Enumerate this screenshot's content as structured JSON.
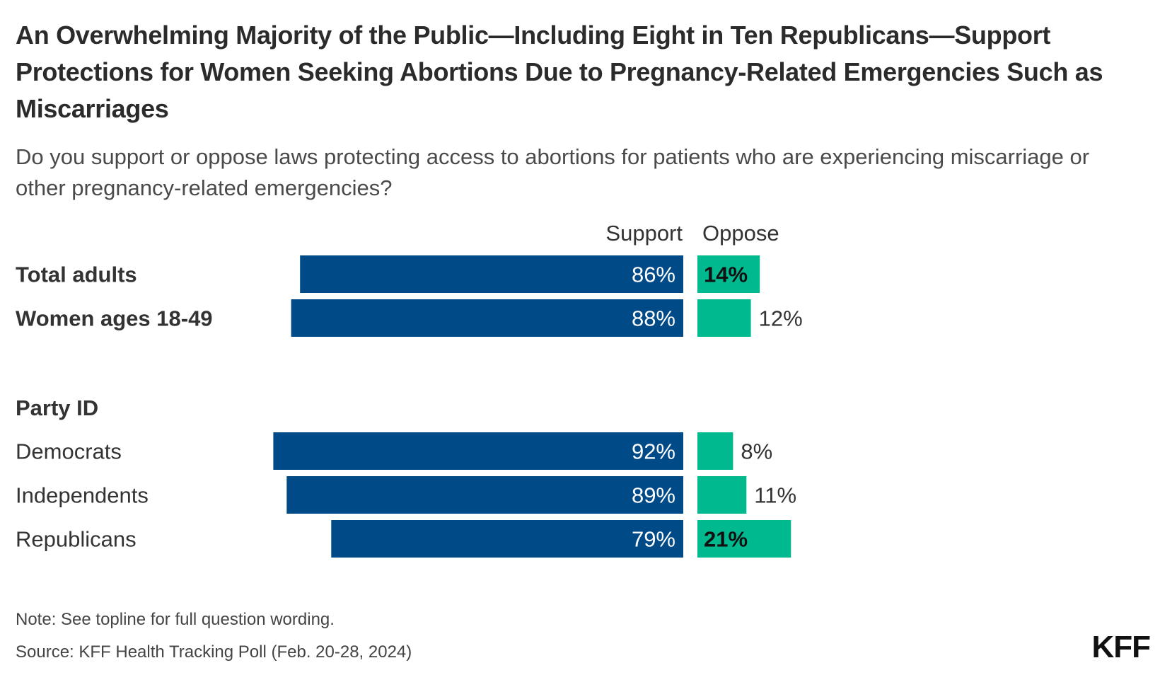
{
  "title": "An Overwhelming Majority of the Public—Including Eight in Ten Republicans—Support Protections for Women Seeking Abortions Due to Pregnancy-Related Emergencies Such as Miscarriages",
  "subtitle": "Do you support or oppose laws protecting access to abortions for patients who are experiencing miscarriage or other pregnancy-related emergencies?",
  "colors": {
    "support": "#004a87",
    "oppose": "#00b98e"
  },
  "chart_data": {
    "type": "bar",
    "orientation": "horizontal-diverging",
    "series": [
      {
        "name": "Support",
        "values": [
          86,
          88,
          92,
          89,
          79
        ]
      },
      {
        "name": "Oppose",
        "values": [
          14,
          12,
          8,
          11,
          21
        ]
      }
    ],
    "categories": [
      "Total adults",
      "Women ages 18-49",
      "Democrats",
      "Independents",
      "Republicans"
    ],
    "group_label": "Party ID",
    "data_labels": {
      "support": [
        "86%",
        "88%",
        "92%",
        "89%",
        "79%"
      ],
      "oppose": [
        "14%",
        "12%",
        "8%",
        "11%",
        "21%"
      ]
    },
    "unit": "%"
  },
  "note": "Note: See topline for full question wording.",
  "source": "Source: KFF Health Tracking Poll (Feb. 20-28, 2024)",
  "logo": "KFF"
}
